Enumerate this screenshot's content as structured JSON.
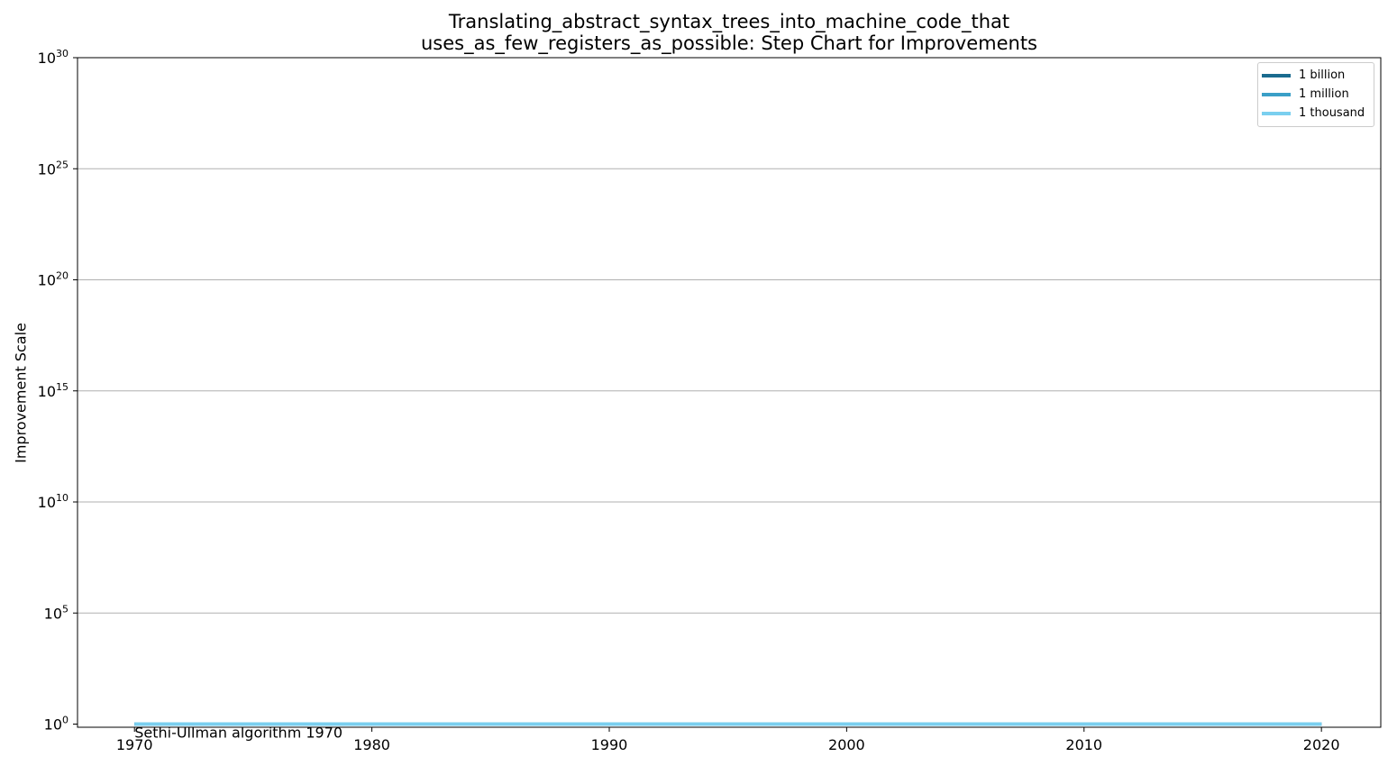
{
  "chart_data": {
    "type": "line",
    "title_line1": "Translating_abstract_syntax_trees_into_machine_code_that",
    "title_line2": "uses_as_few_registers_as_possible: Step Chart for Improvements",
    "xlabel": "",
    "ylabel": "Improvement Scale",
    "xlim": [
      1967.6,
      2022.5
    ],
    "ylim_exponent": [
      0,
      30
    ],
    "yscale": "log",
    "x_ticks": [
      "1970",
      "1980",
      "1990",
      "2000",
      "2010",
      "2020"
    ],
    "y_tick_exponents": [
      "0",
      "5",
      "10",
      "15",
      "20",
      "25",
      "30"
    ],
    "grid": "horizontal",
    "legend_position": "top-right",
    "series": [
      {
        "name": "1 billion",
        "color": "#1a6b8f",
        "x": [
          1970,
          2020
        ],
        "y": [
          1,
          1
        ]
      },
      {
        "name": "1 million",
        "color": "#3a9fc7",
        "x": [
          1970,
          2020
        ],
        "y": [
          1,
          1
        ]
      },
      {
        "name": "1 thousand",
        "color": "#7acfef",
        "x": [
          1970,
          2020
        ],
        "y": [
          1,
          1
        ]
      }
    ],
    "annotations": [
      {
        "text": "Sethi-Ullman algorithm 1970",
        "x": 1970,
        "y": 1
      }
    ]
  }
}
